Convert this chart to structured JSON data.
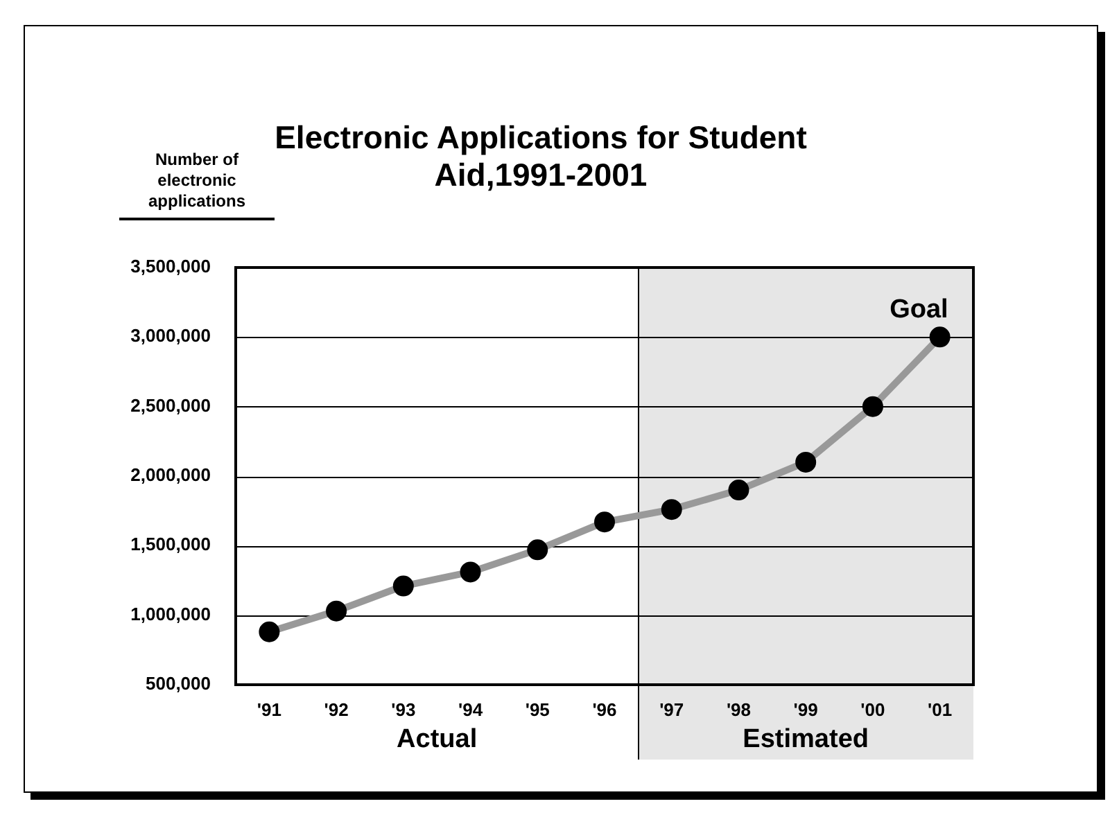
{
  "chart_data": {
    "type": "line",
    "title": "Electronic Applications for Student Aid,1991-2001",
    "ylabel": "Number of electronic applications",
    "x": [
      1991,
      1992,
      1993,
      1994,
      1995,
      1996,
      1997,
      1998,
      1999,
      2000,
      2001
    ],
    "series": [
      {
        "color": "#999999",
        "values": [
          880000,
          1030000,
          1210000,
          1310000,
          1470000,
          1670000,
          1760000,
          1900000,
          2100000,
          2500000,
          3000000
        ]
      }
    ],
    "xlim": [
      1990.5,
      2001.5
    ],
    "xticks": [
      {
        "value": 1991,
        "label": "'91"
      },
      {
        "value": 1992,
        "label": "'92"
      },
      {
        "value": 1993,
        "label": "'93"
      },
      {
        "value": 1994,
        "label": "'94"
      },
      {
        "value": 1995,
        "label": "'95"
      },
      {
        "value": 1996,
        "label": "'96"
      },
      {
        "value": 1997,
        "label": "'97"
      },
      {
        "value": 1998,
        "label": "'98"
      },
      {
        "value": 1999,
        "label": "'99"
      },
      {
        "value": 2000,
        "label": "'00"
      },
      {
        "value": 2001,
        "label": "'01"
      }
    ],
    "ylim": [
      500000,
      3500000
    ],
    "yticks": [
      {
        "value": 500000,
        "label": "500,000"
      },
      {
        "value": 1000000,
        "label": "1,000,000"
      },
      {
        "value": 1500000,
        "label": "1,500,000"
      },
      {
        "value": 2000000,
        "label": "2,000,000"
      },
      {
        "value": 2500000,
        "label": "2,500,000"
      },
      {
        "value": 3000000,
        "label": "3,000,000"
      },
      {
        "value": 3500000,
        "label": "3,500,000"
      }
    ],
    "bands": [
      {
        "axis": "x",
        "from": 1996.5,
        "to": 2001.5,
        "label": "Estimated",
        "color": "#e6e6e6"
      }
    ],
    "annotations": [
      {
        "text": "Goal",
        "x": 2001,
        "y": 3000000
      },
      "Actual"
    ],
    "grid": "y",
    "legend": false,
    "marker": "circle",
    "line_style": "solid"
  }
}
